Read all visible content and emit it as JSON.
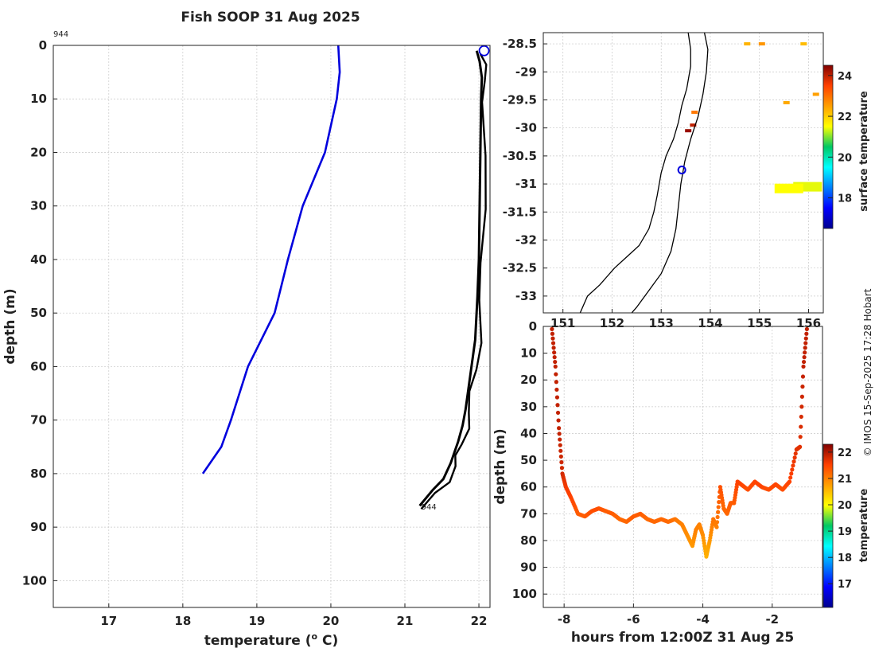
{
  "title": "Fish SOOP 31 Aug 2025",
  "credit": "© IMOS 15-Sep-2025 17:28 Hobart",
  "colors": {
    "profile_a": "#0000dd",
    "profile_b": "#000000",
    "marker": "#0000dd"
  },
  "chart_data": [
    {
      "type": "line",
      "xlabel": "temperature (° C)",
      "xlabel_main": "temperature (",
      "xlabel_sup": "o",
      "xlabel_end": " C)",
      "ylabel": "depth (m)",
      "xlim": [
        16.25,
        22.15
      ],
      "ylim": [
        105,
        0
      ],
      "xticks": [
        "17",
        "18",
        "19",
        "20",
        "21",
        "22"
      ],
      "yticks": [
        "0",
        "10",
        "20",
        "30",
        "40",
        "50",
        "60",
        "70",
        "80",
        "90",
        "100"
      ],
      "grid": true,
      "annotations": [
        "944",
        "944"
      ],
      "series": [
        {
          "x": [
            20.1,
            20.12,
            20.08,
            19.92,
            19.62,
            19.42,
            19.24,
            18.88,
            18.65,
            18.52,
            18.27
          ],
          "y": [
            0,
            5,
            10,
            20,
            30,
            40,
            50,
            60,
            70,
            75,
            80
          ]
        },
        {
          "x": [
            21.97,
            22.01,
            22.04,
            22.03,
            22.02,
            22.01,
            22.0,
            21.98,
            21.95,
            21.9,
            21.86,
            21.82,
            21.78,
            21.72,
            21.67,
            21.62,
            21.52,
            21.38,
            21.2
          ],
          "y": [
            1,
            3,
            6,
            10,
            20,
            30,
            40,
            47,
            55,
            60,
            64,
            68,
            71,
            74,
            76,
            78,
            81,
            83,
            86
          ]
        }
      ]
    },
    {
      "type": "heatmap",
      "xlim": [
        150.6,
        156.3
      ],
      "ylim": [
        -33.3,
        -28.3
      ],
      "xticks": [
        "151",
        "152",
        "153",
        "154",
        "155",
        "156"
      ],
      "yticks": [
        "-28.5",
        "-29",
        "-29.5",
        "-30",
        "-30.5",
        "-31",
        "-31.5",
        "-32",
        "-32.5",
        "-33"
      ],
      "colorbar_label": "surface temperature",
      "colorbar_range": [
        16.5,
        24.5
      ],
      "colorbar_ticks": [
        "18",
        "20",
        "22",
        "24"
      ],
      "grid": true,
      "marker": {
        "lon": 153.42,
        "lat": -30.75
      },
      "coastline": [
        [
          153.55,
          -28.3
        ],
        [
          153.6,
          -28.6
        ],
        [
          153.6,
          -28.9
        ],
        [
          153.52,
          -29.3
        ],
        [
          153.42,
          -29.6
        ],
        [
          153.35,
          -29.9
        ],
        [
          153.25,
          -30.2
        ],
        [
          153.1,
          -30.5
        ],
        [
          153.0,
          -30.8
        ],
        [
          152.92,
          -31.2
        ],
        [
          152.85,
          -31.5
        ],
        [
          152.75,
          -31.8
        ],
        [
          152.55,
          -32.1
        ],
        [
          152.3,
          -32.3
        ],
        [
          152.05,
          -32.5
        ],
        [
          151.75,
          -32.8
        ],
        [
          151.5,
          -33.0
        ],
        [
          151.35,
          -33.3
        ]
      ],
      "shelf_edge": [
        [
          153.88,
          -28.3
        ],
        [
          153.95,
          -28.6
        ],
        [
          153.92,
          -29.0
        ],
        [
          153.85,
          -29.4
        ],
        [
          153.75,
          -29.8
        ],
        [
          153.6,
          -30.2
        ],
        [
          153.48,
          -30.6
        ],
        [
          153.4,
          -31.0
        ],
        [
          153.35,
          -31.4
        ],
        [
          153.3,
          -31.8
        ],
        [
          153.2,
          -32.2
        ],
        [
          153.0,
          -32.6
        ],
        [
          152.75,
          -32.9
        ],
        [
          152.5,
          -33.2
        ],
        [
          152.4,
          -33.3
        ]
      ],
      "sst_patches": [
        {
          "lon": 155.05,
          "lat": -28.5,
          "value": 22.6
        },
        {
          "lon": 154.75,
          "lat": -28.5,
          "value": 22.3
        },
        {
          "lon": 155.9,
          "lat": -28.5,
          "value": 22.2
        },
        {
          "lon": 155.55,
          "lat": -29.55,
          "value": 22.4
        },
        {
          "lon": 156.15,
          "lat": -29.4,
          "value": 22.5
        },
        {
          "lon": 153.68,
          "lat": -29.72,
          "value": 22.9
        },
        {
          "lon": 153.65,
          "lat": -29.95,
          "value": 24.0
        },
        {
          "lon": 153.55,
          "lat": -30.05,
          "value": 24.3
        },
        {
          "lon": 155.98,
          "lat": -31.05,
          "value": 21.4
        },
        {
          "lon": 155.6,
          "lat": -31.08,
          "value": 21.5
        }
      ]
    },
    {
      "type": "scatter",
      "xlabel": "hours from 12:00Z 31 Aug 25",
      "ylabel": "depth (m)",
      "xlim": [
        -8.6,
        -0.55
      ],
      "ylim": [
        105,
        0
      ],
      "xticks": [
        "-8",
        "-6",
        "-4",
        "-2"
      ],
      "yticks": [
        "0",
        "10",
        "20",
        "30",
        "40",
        "50",
        "60",
        "70",
        "80",
        "90",
        "100"
      ],
      "colorbar_label": "temperature",
      "colorbar_range": [
        16.1,
        22.3
      ],
      "colorbar_ticks": [
        "17",
        "18",
        "19",
        "20",
        "21",
        "22"
      ],
      "grid": true,
      "points": {
        "hours": [
          -8.35,
          -8.25,
          -8.15,
          -8.05,
          -7.95,
          -7.8,
          -7.6,
          -7.4,
          -7.2,
          -7.0,
          -6.8,
          -6.6,
          -6.4,
          -6.2,
          -6.0,
          -5.8,
          -5.6,
          -5.4,
          -5.2,
          -5.0,
          -4.8,
          -4.6,
          -4.45,
          -4.3,
          -4.2,
          -4.1,
          -4.0,
          -3.9,
          -3.8,
          -3.7,
          -3.6,
          -3.5,
          -3.4,
          -3.3,
          -3.2,
          -3.1,
          -3.0,
          -2.9,
          -2.7,
          -2.5,
          -2.3,
          -2.1,
          -1.9,
          -1.7,
          -1.5,
          -1.3,
          -1.2,
          -1.1,
          -1.0
        ],
        "depth": [
          1,
          15,
          38,
          55,
          60,
          64,
          70,
          71,
          69,
          68,
          69,
          70,
          72,
          73,
          71,
          70,
          72,
          73,
          72,
          73,
          72,
          74,
          78,
          82,
          76,
          74,
          78,
          86,
          80,
          72,
          75,
          60,
          68,
          70,
          66,
          66,
          58,
          59,
          61,
          58,
          60,
          61,
          59,
          61,
          58,
          46,
          45,
          15,
          1
        ],
        "temps": [
          21.9,
          21.9,
          21.9,
          21.8,
          21.6,
          21.5,
          21.3,
          21.3,
          21.4,
          21.4,
          21.3,
          21.3,
          21.2,
          21.2,
          21.3,
          21.3,
          21.2,
          21.2,
          21.2,
          21.2,
          21.1,
          21.0,
          20.9,
          20.8,
          21.0,
          21.0,
          20.9,
          20.6,
          20.8,
          21.1,
          21.0,
          21.4,
          21.2,
          21.2,
          21.3,
          21.3,
          21.5,
          21.5,
          21.4,
          21.5,
          21.5,
          21.4,
          21.5,
          21.4,
          21.5,
          21.7,
          21.7,
          21.9,
          21.9
        ]
      }
    }
  ]
}
